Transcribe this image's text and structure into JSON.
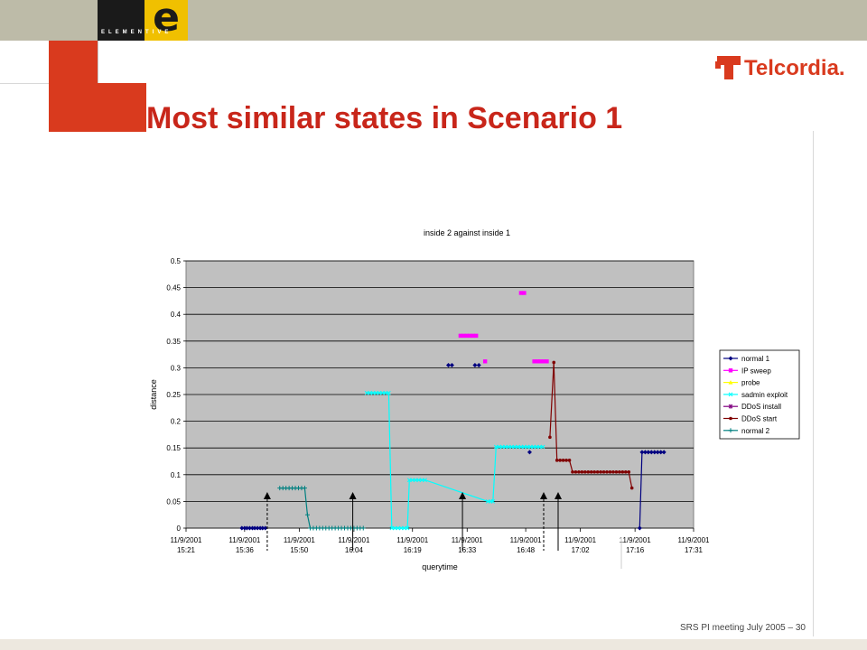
{
  "header": {
    "logo_letter": "e",
    "logo_text": "ELEMENTIVE",
    "brand": "Telcordia.",
    "title": "Most similar states in Scenario 1"
  },
  "footer": {
    "text": "SRS PI meeting July 2005 – 30"
  },
  "colors": {
    "accent": "#d93a1e",
    "title": "#c8261a",
    "plot_bg": "#c0c0c0"
  },
  "chart_data": {
    "type": "line",
    "title": "inside 2 against inside 1",
    "xlabel": "querytime",
    "ylabel": "distance",
    "ylim": [
      0,
      0.5
    ],
    "yticks": [
      "0",
      "0.05",
      "0.1",
      "0.15",
      "0.2",
      "0.25",
      "0.3",
      "0.35",
      "0.4",
      "0.45",
      "0.5"
    ],
    "xlim_minutes": [
      921,
      1051
    ],
    "xticks": [
      {
        "date": "11/9/2001",
        "time": "15:21",
        "m": 921
      },
      {
        "date": "11/9/2001",
        "time": "15:36",
        "m": 936
      },
      {
        "date": "11/9/2001",
        "time": "15:50",
        "m": 950
      },
      {
        "date": "11/9/2001",
        "time": "16:04",
        "m": 964
      },
      {
        "date": "11/9/2001",
        "time": "16:19",
        "m": 979
      },
      {
        "date": "11/9/2001",
        "time": "16:33",
        "m": 993
      },
      {
        "date": "11/9/2001",
        "time": "16:48",
        "m": 1008
      },
      {
        "date": "11/9/2001",
        "time": "17:02",
        "m": 1022
      },
      {
        "date": "11/9/2001",
        "time": "17:16",
        "m": 1036
      },
      {
        "date": "11/9/2001",
        "time": "17:31",
        "m": 1051
      }
    ],
    "grid": true,
    "legend_position": "right",
    "series": [
      {
        "name": "normal 1",
        "color": "#000080",
        "marker": "diamond",
        "points": [
          [
            935.3,
            0
          ],
          [
            936.0,
            0
          ],
          [
            936.6,
            0
          ],
          [
            937.3,
            0
          ],
          [
            938.0,
            0
          ],
          [
            938.6,
            0
          ],
          [
            939.3,
            0
          ],
          [
            940.0,
            0
          ],
          [
            940.6,
            0
          ],
          [
            941.3,
            0
          ],
          [
            988.2,
            0.305
          ],
          [
            989.1,
            0.305
          ],
          [
            995.0,
            0.305
          ],
          [
            996.0,
            0.305
          ],
          [
            1009.0,
            0.142
          ],
          [
            1037.2,
            0
          ],
          [
            1037.8,
            0.142
          ],
          [
            1038.6,
            0.142
          ],
          [
            1039.4,
            0.142
          ],
          [
            1040.2,
            0.142
          ],
          [
            1041.0,
            0.142
          ],
          [
            1041.8,
            0.142
          ],
          [
            1042.6,
            0.142
          ],
          [
            1043.4,
            0.142
          ]
        ],
        "segments": [
          [
            0,
            9
          ],
          [
            15,
            23
          ]
        ]
      },
      {
        "name": "IP sweep",
        "color": "#ff00ff",
        "marker": "square",
        "points": [
          [
            991.3,
            0.36
          ],
          [
            992.1,
            0.36
          ],
          [
            992.9,
            0.36
          ],
          [
            993.7,
            0.36
          ],
          [
            994.5,
            0.36
          ],
          [
            995.3,
            0.36
          ],
          [
            997.6,
            0.312
          ],
          [
            1006.8,
            0.44
          ],
          [
            1007.6,
            0.44
          ],
          [
            1010.2,
            0.312
          ],
          [
            1011.0,
            0.312
          ],
          [
            1011.8,
            0.312
          ],
          [
            1012.6,
            0.312
          ],
          [
            1013.4,
            0.312
          ]
        ],
        "segments": []
      },
      {
        "name": "probe",
        "color": "#ffff00",
        "marker": "triangle",
        "points": [],
        "segments": []
      },
      {
        "name": "sadmin exploit",
        "color": "#00ffff",
        "marker": "x",
        "points": [
          [
            967.3,
            0.253
          ],
          [
            968.1,
            0.253
          ],
          [
            968.9,
            0.253
          ],
          [
            969.7,
            0.253
          ],
          [
            970.5,
            0.253
          ],
          [
            971.3,
            0.253
          ],
          [
            972.1,
            0.253
          ],
          [
            972.9,
            0.253
          ],
          [
            973.7,
            0.0
          ],
          [
            974.5,
            0.0
          ],
          [
            975.3,
            0.0
          ],
          [
            976.1,
            0.0
          ],
          [
            976.9,
            0.0
          ],
          [
            977.7,
            0.0
          ],
          [
            978.2,
            0.09
          ],
          [
            979.0,
            0.09
          ],
          [
            979.8,
            0.09
          ],
          [
            980.6,
            0.09
          ],
          [
            981.4,
            0.09
          ],
          [
            982.2,
            0.09
          ],
          [
            998.3,
            0.05
          ],
          [
            999.0,
            0.05
          ],
          [
            999.6,
            0.05
          ],
          [
            1000.4,
            0.152
          ],
          [
            1001.2,
            0.152
          ],
          [
            1002.0,
            0.152
          ],
          [
            1002.8,
            0.152
          ],
          [
            1003.6,
            0.152
          ],
          [
            1004.4,
            0.152
          ],
          [
            1005.2,
            0.152
          ],
          [
            1006.0,
            0.152
          ],
          [
            1006.8,
            0.152
          ],
          [
            1007.6,
            0.152
          ],
          [
            1008.4,
            0.152
          ],
          [
            1009.2,
            0.152
          ],
          [
            1010.0,
            0.152
          ],
          [
            1010.8,
            0.152
          ],
          [
            1011.6,
            0.152
          ],
          [
            1012.4,
            0.152
          ]
        ],
        "segments": [
          [
            0,
            38
          ]
        ]
      },
      {
        "name": "DDoS install",
        "color": "#800080",
        "marker": "star",
        "points": [],
        "segments": []
      },
      {
        "name": "DDoS start",
        "color": "#800000",
        "marker": "circle",
        "points": [
          [
            1014.2,
            0.17
          ],
          [
            1015.2,
            0.31
          ],
          [
            1016.0,
            0.127
          ],
          [
            1016.8,
            0.127
          ],
          [
            1017.6,
            0.127
          ],
          [
            1018.4,
            0.127
          ],
          [
            1019.2,
            0.127
          ],
          [
            1020.0,
            0.105
          ],
          [
            1020.8,
            0.105
          ],
          [
            1021.6,
            0.105
          ],
          [
            1022.4,
            0.105
          ],
          [
            1023.2,
            0.105
          ],
          [
            1024.0,
            0.105
          ],
          [
            1024.8,
            0.105
          ],
          [
            1025.6,
            0.105
          ],
          [
            1026.4,
            0.105
          ],
          [
            1027.2,
            0.105
          ],
          [
            1028.0,
            0.105
          ],
          [
            1028.8,
            0.105
          ],
          [
            1029.6,
            0.105
          ],
          [
            1030.4,
            0.105
          ],
          [
            1031.2,
            0.105
          ],
          [
            1032.0,
            0.105
          ],
          [
            1032.8,
            0.105
          ],
          [
            1033.6,
            0.105
          ],
          [
            1034.4,
            0.105
          ],
          [
            1035.2,
            0.075
          ]
        ],
        "segments": [
          [
            0,
            26
          ]
        ]
      },
      {
        "name": "normal 2",
        "color": "#008080",
        "marker": "plus",
        "points": [
          [
            945.0,
            0.075
          ],
          [
            945.8,
            0.075
          ],
          [
            946.6,
            0.075
          ],
          [
            947.4,
            0.075
          ],
          [
            948.2,
            0.075
          ],
          [
            949.0,
            0.075
          ],
          [
            949.8,
            0.075
          ],
          [
            950.6,
            0.075
          ],
          [
            951.4,
            0.075
          ],
          [
            952.1,
            0.025
          ],
          [
            952.8,
            0
          ],
          [
            953.6,
            0
          ],
          [
            954.4,
            0
          ],
          [
            955.2,
            0
          ],
          [
            956.0,
            0
          ],
          [
            956.8,
            0
          ],
          [
            957.6,
            0
          ],
          [
            958.4,
            0
          ],
          [
            959.2,
            0
          ],
          [
            960.0,
            0
          ],
          [
            960.8,
            0
          ],
          [
            961.6,
            0
          ],
          [
            962.4,
            0
          ],
          [
            963.2,
            0
          ],
          [
            964.0,
            0
          ],
          [
            964.8,
            0
          ],
          [
            965.6,
            0
          ],
          [
            966.4,
            0
          ]
        ],
        "segments": [
          [
            0,
            27
          ]
        ]
      }
    ],
    "arrows": [
      {
        "m": 941.8,
        "style": "dashed"
      },
      {
        "m": 963.7,
        "style": "solid"
      },
      {
        "m": 991.8,
        "style": "solid"
      },
      {
        "m": 1012.6,
        "style": "dashed"
      },
      {
        "m": 1016.3,
        "style": "solid"
      }
    ]
  }
}
